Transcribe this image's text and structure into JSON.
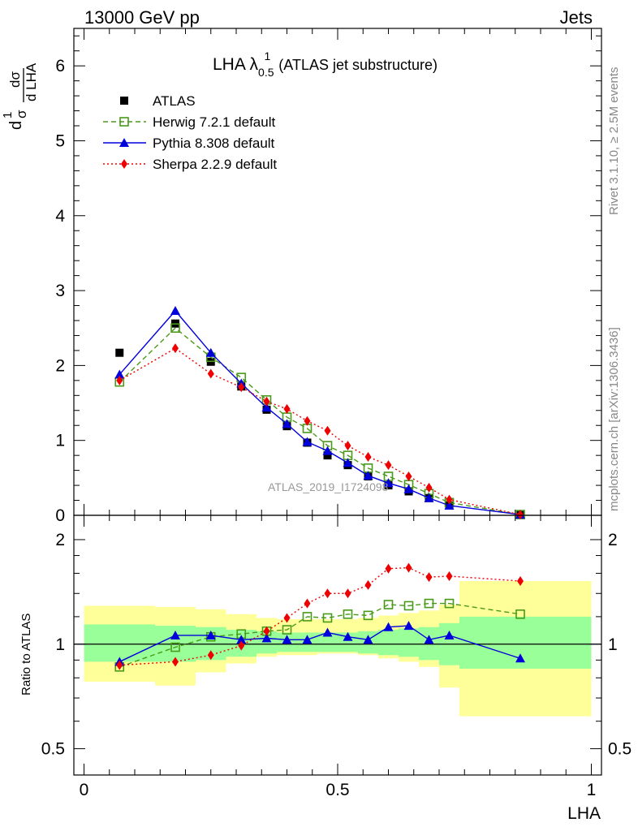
{
  "header": {
    "left": "13000 GeV pp",
    "right": "Jets"
  },
  "plot_title_main": "LHA λ",
  "plot_title_sup": "1",
  "plot_title_sub": "0.5",
  "plot_title_note": "(ATLAS jet substructure)",
  "analysis_label": "ATLAS_2019_I1724098",
  "side_text": {
    "rivet": "Rivet 3.1.10, ≥ 2.5M events",
    "mcplots": "mcplots.cern.ch [arXiv:1306.3436]"
  },
  "colors": {
    "atlas": "#000000",
    "herwig": "#4a9a1a",
    "pythia": "#0000dd",
    "sherpa": "#ee0000",
    "band_inner": "#99ff99",
    "band_outer": "#ffff99"
  },
  "chart_data": [
    {
      "type": "scatter",
      "panel": "main",
      "xlabel": "LHA",
      "ylabel_parts": [
        "d",
        "1",
        "σ",
        "dσ",
        "d LHA"
      ],
      "xlim": [
        -0.02,
        1.02
      ],
      "ylim": [
        0,
        6.5
      ],
      "y_ticks": [
        0,
        1,
        2,
        3,
        4,
        5,
        6
      ],
      "x": [
        0.07,
        0.18,
        0.25,
        0.31,
        0.36,
        0.4,
        0.44,
        0.48,
        0.52,
        0.56,
        0.6,
        0.64,
        0.68,
        0.72,
        0.86
      ],
      "series": [
        {
          "name": "ATLAS",
          "style": "marker-square-filled",
          "values": [
            2.17,
            2.56,
            2.05,
            1.72,
            1.41,
            1.19,
            0.97,
            0.8,
            0.67,
            0.52,
            0.4,
            0.32,
            0.23,
            0.13,
            0.01
          ]
        },
        {
          "name": "Herwig 7.2.1 default",
          "style": "dashed-open-square",
          "values": [
            1.78,
            2.5,
            2.11,
            1.84,
            1.54,
            1.31,
            1.16,
            0.93,
            0.8,
            0.63,
            0.52,
            0.41,
            0.29,
            0.17,
            0.01
          ]
        },
        {
          "name": "Pythia 8.308 default",
          "style": "solid-triangle",
          "values": [
            1.88,
            2.73,
            2.17,
            1.76,
            1.44,
            1.22,
            0.98,
            0.86,
            0.7,
            0.53,
            0.43,
            0.35,
            0.23,
            0.13,
            0.01
          ]
        },
        {
          "name": "Sherpa 2.2.9 default",
          "style": "dotted-diamond",
          "values": [
            1.8,
            2.23,
            1.89,
            1.71,
            1.52,
            1.42,
            1.26,
            1.13,
            0.93,
            0.78,
            0.67,
            0.52,
            0.37,
            0.21,
            0.01
          ]
        }
      ]
    },
    {
      "type": "scatter",
      "panel": "ratio",
      "xlabel": "LHA",
      "ylabel": "Ratio to ATLAS",
      "xlim": [
        -0.02,
        1.02
      ],
      "ylim": [
        0.42,
        2.35
      ],
      "ylog": true,
      "y_ticks": [
        0.5,
        1,
        2
      ],
      "x_ticks": [
        0,
        0.5,
        1
      ],
      "x_tick_labels": [
        "0",
        "0.5",
        "1"
      ],
      "reference_line": 1,
      "bands": {
        "edges": [
          0.0,
          0.14,
          0.22,
          0.28,
          0.34,
          0.38,
          0.42,
          0.46,
          0.5,
          0.54,
          0.58,
          0.62,
          0.66,
          0.7,
          0.74,
          1.0
        ],
        "inner_low": [
          0.89,
          0.89,
          0.9,
          0.92,
          0.94,
          0.95,
          0.95,
          0.95,
          0.95,
          0.94,
          0.93,
          0.92,
          0.9,
          0.87,
          0.85
        ],
        "inner_high": [
          1.14,
          1.13,
          1.12,
          1.1,
          1.09,
          1.08,
          1.08,
          1.08,
          1.08,
          1.09,
          1.1,
          1.11,
          1.12,
          1.15,
          1.2
        ],
        "outer_low": [
          0.78,
          0.76,
          0.83,
          0.88,
          0.92,
          0.93,
          0.93,
          0.94,
          0.94,
          0.93,
          0.91,
          0.89,
          0.86,
          0.75,
          0.62
        ],
        "outer_high": [
          1.29,
          1.28,
          1.26,
          1.22,
          1.19,
          1.18,
          1.18,
          1.18,
          1.18,
          1.19,
          1.21,
          1.23,
          1.25,
          1.3,
          1.52
        ]
      },
      "x": [
        0.07,
        0.18,
        0.25,
        0.31,
        0.36,
        0.4,
        0.44,
        0.48,
        0.52,
        0.56,
        0.6,
        0.64,
        0.68,
        0.72,
        0.86
      ],
      "series": [
        {
          "name": "Herwig 7.2.1 default",
          "style": "dashed-open-square",
          "values": [
            0.86,
            0.98,
            1.05,
            1.07,
            1.09,
            1.1,
            1.2,
            1.19,
            1.22,
            1.21,
            1.3,
            1.29,
            1.31,
            1.31,
            1.22
          ]
        },
        {
          "name": "Pythia 8.308 default",
          "style": "solid-triangle",
          "values": [
            0.89,
            1.06,
            1.06,
            1.03,
            1.04,
            1.03,
            1.03,
            1.08,
            1.05,
            1.03,
            1.12,
            1.13,
            1.03,
            1.06,
            0.91
          ]
        },
        {
          "name": "Sherpa 2.2.9 default",
          "style": "dotted-diamond",
          "values": [
            0.87,
            0.89,
            0.93,
            0.99,
            1.09,
            1.19,
            1.31,
            1.4,
            1.4,
            1.48,
            1.65,
            1.66,
            1.56,
            1.57,
            1.52
          ]
        }
      ]
    }
  ]
}
